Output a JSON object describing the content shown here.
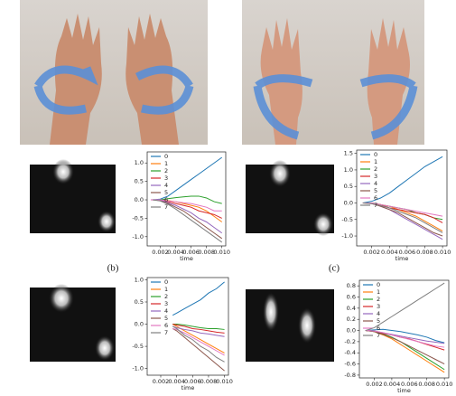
{
  "captions": [
    "(b)",
    "(c)"
  ],
  "chart_data": [
    {
      "type": "line",
      "xlabel": "time",
      "x": [
        0.001,
        0.002,
        0.003,
        0.004,
        0.005,
        0.006,
        0.007,
        0.008,
        0.009,
        0.01
      ],
      "xlim": [
        0.0003,
        0.0105
      ],
      "xticks": [
        0.002,
        0.004,
        0.006,
        0.008,
        {
          "value": 0.01,
          "label": "0.010"
        }
      ],
      "ylim": [
        -1.25,
        1.3
      ],
      "yticks": [
        {
          "value": -1,
          "label": "-1.0"
        },
        -0.5,
        {
          "value": 0,
          "label": "0.0"
        },
        0.5,
        {
          "value": 1,
          "label": "1.0"
        }
      ],
      "series": [
        {
          "name": "0",
          "color": "#1f77b4",
          "values": [
            0,
            0.02,
            0.1,
            0.25,
            0.4,
            0.55,
            0.7,
            0.85,
            1.0,
            1.15
          ]
        },
        {
          "name": "1",
          "color": "#ff7f0e",
          "values": [
            0,
            0,
            -0.02,
            -0.05,
            -0.1,
            -0.15,
            -0.2,
            -0.3,
            -0.45,
            -0.6
          ]
        },
        {
          "name": "2",
          "color": "#2ca02c",
          "values": [
            0,
            0,
            0.03,
            0.06,
            0.08,
            0.1,
            0.1,
            0.05,
            -0.05,
            -0.1
          ]
        },
        {
          "name": "3",
          "color": "#d62728",
          "values": [
            0,
            0,
            -0.05,
            -0.1,
            -0.15,
            -0.2,
            -0.3,
            -0.35,
            -0.4,
            -0.5
          ]
        },
        {
          "name": "4",
          "color": "#9467bd",
          "values": [
            0,
            0,
            -0.08,
            -0.15,
            -0.25,
            -0.35,
            -0.5,
            -0.6,
            -0.75,
            -0.9
          ]
        },
        {
          "name": "5",
          "color": "#8c564b",
          "values": [
            0,
            -0.02,
            -0.1,
            -0.2,
            -0.3,
            -0.45,
            -0.6,
            -0.75,
            -0.9,
            -1.05
          ]
        },
        {
          "name": "6",
          "color": "#e377c2",
          "values": [
            0,
            0,
            -0.03,
            -0.05,
            -0.08,
            -0.1,
            -0.15,
            -0.2,
            -0.3,
            -0.3
          ]
        },
        {
          "name": "7",
          "color": "#7f7f7f",
          "values": [
            0,
            -0.03,
            -0.12,
            -0.25,
            -0.4,
            -0.55,
            -0.7,
            -0.85,
            -1.0,
            -1.15
          ]
        }
      ]
    },
    {
      "type": "line",
      "xlabel": "time",
      "x": [
        0.001,
        0.002,
        0.003,
        0.004,
        0.005,
        0.006,
        0.007,
        0.008,
        0.009,
        0.01
      ],
      "xlim": [
        0.0003,
        0.0105
      ],
      "xticks": [
        0.002,
        0.004,
        0.006,
        0.008,
        {
          "value": 0.01,
          "label": "0.010"
        }
      ],
      "ylim": [
        -1.3,
        1.6
      ],
      "yticks": [
        {
          "value": -1,
          "label": "-1.0"
        },
        -0.5,
        {
          "value": 0,
          "label": "0.0"
        },
        0.5,
        {
          "value": 1,
          "label": "1.0"
        },
        1.5
      ],
      "series": [
        {
          "name": "0",
          "color": "#1f77b4",
          "values": [
            0,
            0.05,
            0.15,
            0.3,
            0.5,
            0.7,
            0.9,
            1.1,
            1.25,
            1.4
          ]
        },
        {
          "name": "1",
          "color": "#ff7f0e",
          "values": [
            0,
            0,
            -0.05,
            -0.1,
            -0.2,
            -0.3,
            -0.4,
            -0.55,
            -0.7,
            -0.85
          ]
        },
        {
          "name": "2",
          "color": "#2ca02c",
          "values": [
            0,
            0,
            -0.05,
            -0.1,
            -0.15,
            -0.2,
            -0.3,
            -0.35,
            -0.45,
            -0.5
          ]
        },
        {
          "name": "3",
          "color": "#d62728",
          "values": [
            0,
            0,
            -0.05,
            -0.15,
            -0.2,
            -0.25,
            -0.3,
            -0.35,
            -0.45,
            -0.6
          ]
        },
        {
          "name": "4",
          "color": "#9467bd",
          "values": [
            0,
            0,
            -0.1,
            -0.2,
            -0.35,
            -0.5,
            -0.65,
            -0.8,
            -0.95,
            -1.1
          ]
        },
        {
          "name": "5",
          "color": "#8c564b",
          "values": [
            0,
            -0.02,
            -0.1,
            -0.2,
            -0.3,
            -0.45,
            -0.6,
            -0.75,
            -0.9,
            -1.0
          ]
        },
        {
          "name": "6",
          "color": "#e377c2",
          "values": [
            0,
            0,
            -0.05,
            -0.1,
            -0.15,
            -0.2,
            -0.25,
            -0.3,
            -0.35,
            -0.4
          ]
        },
        {
          "name": "7",
          "color": "#7f7f7f",
          "values": [
            0,
            -0.02,
            -0.08,
            -0.15,
            -0.25,
            -0.35,
            -0.45,
            -0.6,
            -0.75,
            -0.9
          ]
        }
      ]
    },
    {
      "type": "line",
      "xlabel": "time",
      "x": [
        0.0035,
        0.004,
        0.005,
        0.006,
        0.007,
        0.008,
        0.009,
        0.01
      ],
      "xlim": [
        0.0003,
        0.0105
      ],
      "xticks": [
        0.002,
        0.004,
        0.006,
        0.008,
        {
          "value": 0.01,
          "label": "0.010"
        }
      ],
      "ylim": [
        -1.15,
        1.05
      ],
      "yticks": [
        {
          "value": -1,
          "label": "-1.0"
        },
        -0.5,
        {
          "value": 0,
          "label": "0.0"
        },
        0.5,
        {
          "value": 1,
          "label": "1.0"
        }
      ],
      "series": [
        {
          "name": "0",
          "color": "#1f77b4",
          "values": [
            0.2,
            0.25,
            0.35,
            0.45,
            0.55,
            0.7,
            0.8,
            0.95
          ]
        },
        {
          "name": "1",
          "color": "#ff7f0e",
          "values": [
            0,
            -0.05,
            -0.15,
            -0.25,
            -0.35,
            -0.45,
            -0.55,
            -0.65
          ]
        },
        {
          "name": "2",
          "color": "#2ca02c",
          "values": [
            0,
            0,
            -0.02,
            -0.05,
            -0.08,
            -0.1,
            -0.1,
            -0.12
          ]
        },
        {
          "name": "3",
          "color": "#d62728",
          "values": [
            0,
            -0.02,
            -0.05,
            -0.1,
            -0.12,
            -0.15,
            -0.18,
            -0.2
          ]
        },
        {
          "name": "4",
          "color": "#9467bd",
          "values": [
            -0.05,
            -0.08,
            -0.12,
            -0.15,
            -0.2,
            -0.22,
            -0.25,
            -0.28
          ]
        },
        {
          "name": "5",
          "color": "#8c564b",
          "values": [
            -0.1,
            -0.15,
            -0.3,
            -0.45,
            -0.6,
            -0.75,
            -0.9,
            -1.05
          ]
        },
        {
          "name": "6",
          "color": "#e377c2",
          "values": [
            -0.1,
            -0.12,
            -0.2,
            -0.3,
            -0.4,
            -0.5,
            -0.6,
            -0.7
          ]
        },
        {
          "name": "7",
          "color": "#7f7f7f",
          "values": [
            -0.05,
            -0.1,
            -0.25,
            -0.35,
            -0.5,
            -0.6,
            -0.75,
            -0.85
          ]
        }
      ]
    },
    {
      "type": "line",
      "xlabel": "time",
      "x": [
        0.001,
        0.002,
        0.003,
        0.004,
        0.005,
        0.006,
        0.007,
        0.008,
        0.009,
        0.01
      ],
      "xlim": [
        0.0003,
        0.0105
      ],
      "xticks": [
        0.002,
        0.004,
        0.006,
        0.008,
        {
          "value": 0.01,
          "label": "0.010"
        }
      ],
      "ylim": [
        -0.85,
        0.9
      ],
      "yticks": [
        -0.8,
        -0.6,
        -0.4,
        -0.2,
        {
          "value": 0,
          "label": "0.0"
        },
        0.2,
        0.4,
        0.6,
        0.8
      ],
      "series": [
        {
          "name": "0",
          "color": "#1f77b4",
          "values": [
            0,
            0.01,
            0.02,
            0,
            -0.02,
            -0.05,
            -0.08,
            -0.12,
            -0.18,
            -0.22
          ]
        },
        {
          "name": "1",
          "color": "#ff7f0e",
          "values": [
            0,
            -0.02,
            -0.08,
            -0.15,
            -0.25,
            -0.35,
            -0.45,
            -0.55,
            -0.65,
            -0.75
          ]
        },
        {
          "name": "2",
          "color": "#2ca02c",
          "values": [
            0,
            -0.02,
            -0.06,
            -0.12,
            -0.2,
            -0.3,
            -0.4,
            -0.5,
            -0.6,
            -0.7
          ]
        },
        {
          "name": "3",
          "color": "#d62728",
          "values": [
            0,
            -0.01,
            -0.05,
            -0.08,
            -0.12,
            -0.15,
            -0.2,
            -0.25,
            -0.3,
            -0.35
          ]
        },
        {
          "name": "4",
          "color": "#9467bd",
          "values": [
            0,
            -0.01,
            -0.04,
            -0.07,
            -0.1,
            -0.13,
            -0.16,
            -0.19,
            -0.21,
            -0.23
          ]
        },
        {
          "name": "5",
          "color": "#8c564b",
          "values": [
            0,
            -0.02,
            -0.07,
            -0.13,
            -0.2,
            -0.28,
            -0.36,
            -0.44,
            -0.52,
            -0.6
          ]
        },
        {
          "name": "6",
          "color": "#e377c2",
          "values": [
            0,
            -0.01,
            -0.04,
            -0.08,
            -0.12,
            -0.16,
            -0.2,
            -0.24,
            -0.28,
            -0.3
          ]
        },
        {
          "name": "7",
          "color": "#7f7f7f",
          "values": [
            0,
            0.05,
            0.15,
            0.25,
            0.35,
            0.45,
            0.55,
            0.65,
            0.75,
            0.85
          ]
        }
      ]
    }
  ]
}
